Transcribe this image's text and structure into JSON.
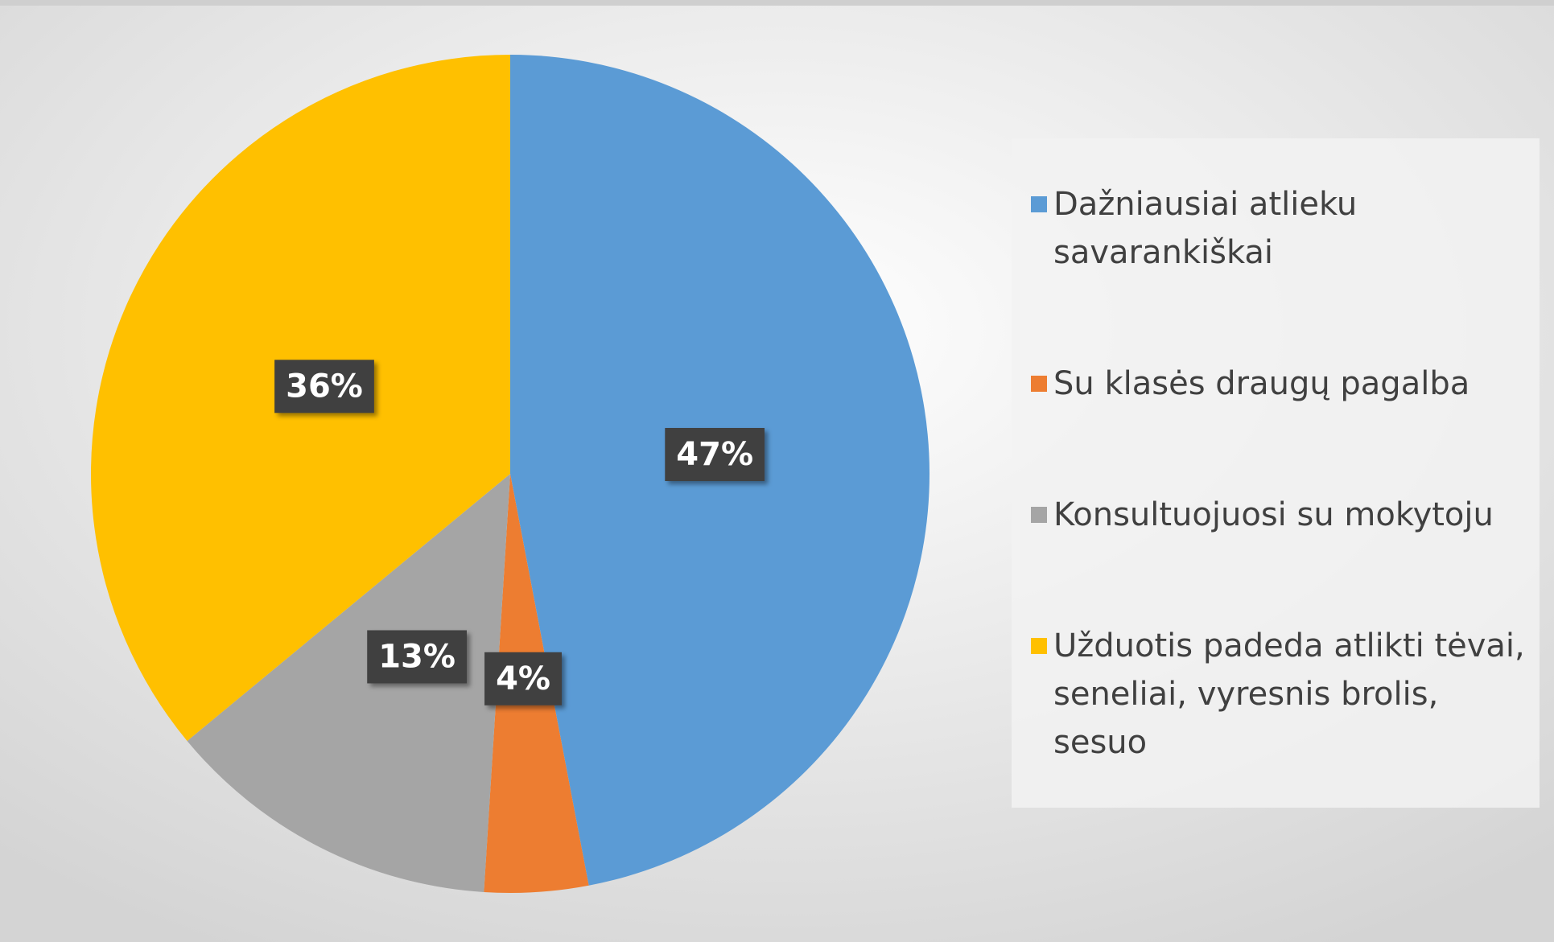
{
  "chart_data": {
    "type": "pie",
    "categories": [
      "Dažniausiai atlieku savarankiškai",
      "Su klasės draugų pagalba",
      "Konsultuojuosi su mokytoju",
      "Užduotis padeda atlikti tėvai, seneliai, vyresnis brolis, sesuo"
    ],
    "values": [
      47,
      4,
      13,
      36
    ],
    "value_labels": [
      "47%",
      "4%",
      "13%",
      "36%"
    ],
    "colors": [
      "#5b9bd5",
      "#ed7d31",
      "#a5a5a5",
      "#ffc000"
    ],
    "legend": "right"
  }
}
